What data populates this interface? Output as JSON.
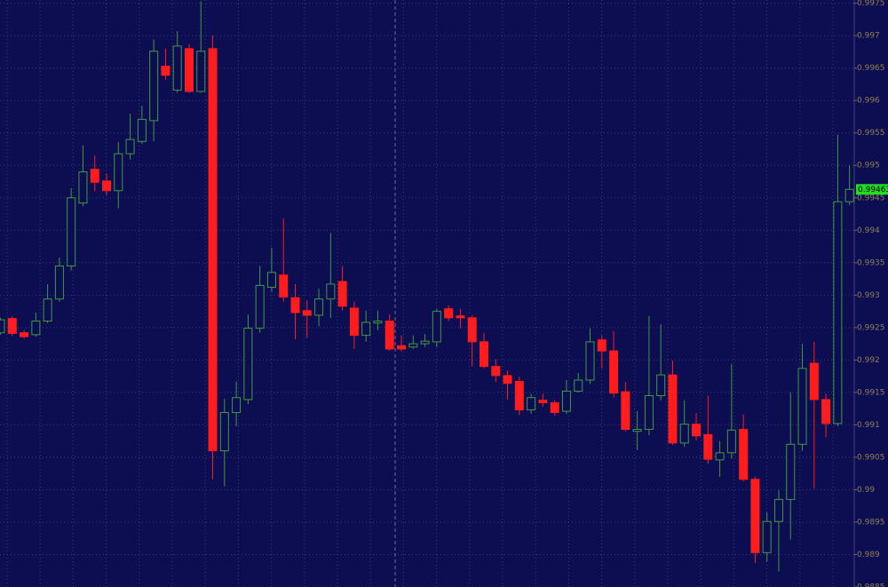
{
  "chart_data": {
    "type": "candlestick",
    "up_color": "#3f9a3f",
    "down_color": "#ff1c1c",
    "grid": true,
    "ylim": [
      0.9885,
      0.99755
    ],
    "yticks": [
      0.9975,
      0.997,
      0.9965,
      0.996,
      0.9955,
      0.995,
      0.9945,
      0.994,
      0.9935,
      0.993,
      0.9925,
      0.992,
      0.9915,
      0.991,
      0.9905,
      0.99,
      0.9895,
      0.989,
      0.9885
    ],
    "last_price": 0.99463,
    "open": [
      0.99242,
      0.99264,
      0.99242,
      0.99239,
      0.9926,
      0.99294,
      0.99345,
      0.99442,
      0.99494,
      0.99476,
      0.99461,
      0.99518,
      0.99537,
      0.99569,
      0.99653,
      0.99616,
      0.9968,
      0.99614,
      0.9968,
      0.9906,
      0.99119,
      0.99139,
      0.99249,
      0.99312,
      0.99331,
      0.99296,
      0.99276,
      0.99269,
      0.99294,
      0.99321,
      0.9928,
      0.99238,
      0.99257,
      0.9926,
      0.99222,
      0.9922,
      0.99225,
      0.99228,
      0.99279,
      0.99268,
      0.99265,
      0.99228,
      0.9919,
      0.99176,
      0.99167,
      0.99123,
      0.99138,
      0.99134,
      0.99121,
      0.99152,
      0.99169,
      0.99231,
      0.99214,
      0.99151,
      0.9909,
      0.99093,
      0.99145,
      0.99177,
      0.99072,
      0.99101,
      0.99085,
      0.99046,
      0.99057,
      0.99093,
      0.99016,
      0.98903,
      0.98951,
      0.98985,
      0.9907,
      0.99195,
      0.99139,
      0.99102,
      0.99444
    ],
    "high": [
      0.99265,
      0.99267,
      0.99246,
      0.99273,
      0.99317,
      0.99358,
      0.99465,
      0.99531,
      0.99515,
      0.99488,
      0.99536,
      0.9958,
      0.99592,
      0.99694,
      0.9968,
      0.99707,
      0.99687,
      0.99753,
      0.997,
      0.9914,
      0.99167,
      0.9927,
      0.99345,
      0.99373,
      0.99418,
      0.99317,
      0.99292,
      0.9931,
      0.99396,
      0.99345,
      0.9929,
      0.99276,
      0.99276,
      0.9927,
      0.99238,
      0.99238,
      0.9924,
      0.99279,
      0.99284,
      0.99279,
      0.99269,
      0.99242,
      0.99201,
      0.99184,
      0.99174,
      0.99148,
      0.99148,
      0.99138,
      0.99169,
      0.9918,
      0.99249,
      0.99238,
      0.99245,
      0.99166,
      0.99121,
      0.99268,
      0.99255,
      0.99199,
      0.99138,
      0.99118,
      0.99145,
      0.99075,
      0.99194,
      0.99116,
      0.9902,
      0.98965,
      0.98999,
      0.9915,
      0.99225,
      0.99228,
      0.99148,
      0.99547,
      0.995
    ],
    "low": [
      0.99239,
      0.99237,
      0.99233,
      0.99236,
      0.99257,
      0.9929,
      0.99338,
      0.99437,
      0.9946,
      0.99454,
      0.99434,
      0.99509,
      0.99533,
      0.99537,
      0.99632,
      0.99612,
      0.99612,
      0.99612,
      0.99016,
      0.99005,
      0.99098,
      0.99132,
      0.99242,
      0.99305,
      0.9929,
      0.99232,
      0.99234,
      0.99252,
      0.99265,
      0.99276,
      0.99217,
      0.99228,
      0.99246,
      0.99214,
      0.99213,
      0.99217,
      0.9922,
      0.9922,
      0.9926,
      0.99249,
      0.9919,
      0.99187,
      0.99166,
      0.99139,
      0.99115,
      0.99117,
      0.99128,
      0.99114,
      0.99117,
      0.9915,
      0.99163,
      0.99187,
      0.99142,
      0.9909,
      0.99061,
      0.99084,
      0.99138,
      0.99069,
      0.99066,
      0.99076,
      0.9904,
      0.9902,
      0.99048,
      0.99013,
      0.98887,
      0.98889,
      0.98874,
      0.98923,
      0.9906,
      0.99002,
      0.99081,
      0.99098,
      0.99439
    ],
    "close": [
      0.99262,
      0.99241,
      0.99236,
      0.9926,
      0.99294,
      0.99345,
      0.9945,
      0.9949,
      0.99474,
      0.99461,
      0.99518,
      0.9954,
      0.99571,
      0.99676,
      0.99639,
      0.99684,
      0.99614,
      0.99676,
      0.9906,
      0.99119,
      0.99142,
      0.99249,
      0.99315,
      0.99335,
      0.99297,
      0.99273,
      0.99269,
      0.99294,
      0.99317,
      0.99283,
      0.99238,
      0.99258,
      0.9926,
      0.99217,
      0.99217,
      0.99225,
      0.99229,
      0.99275,
      0.99265,
      0.99265,
      0.99228,
      0.9919,
      0.99176,
      0.99164,
      0.99123,
      0.99142,
      0.99134,
      0.99119,
      0.99152,
      0.99169,
      0.99228,
      0.99214,
      0.99149,
      0.99093,
      0.99093,
      0.99145,
      0.99177,
      0.99072,
      0.99101,
      0.99083,
      0.99047,
      0.99057,
      0.99092,
      0.99016,
      0.98903,
      0.98951,
      0.98985,
      0.9907,
      0.99187,
      0.99139,
      0.99102,
      0.99444,
      0.99463
    ]
  }
}
